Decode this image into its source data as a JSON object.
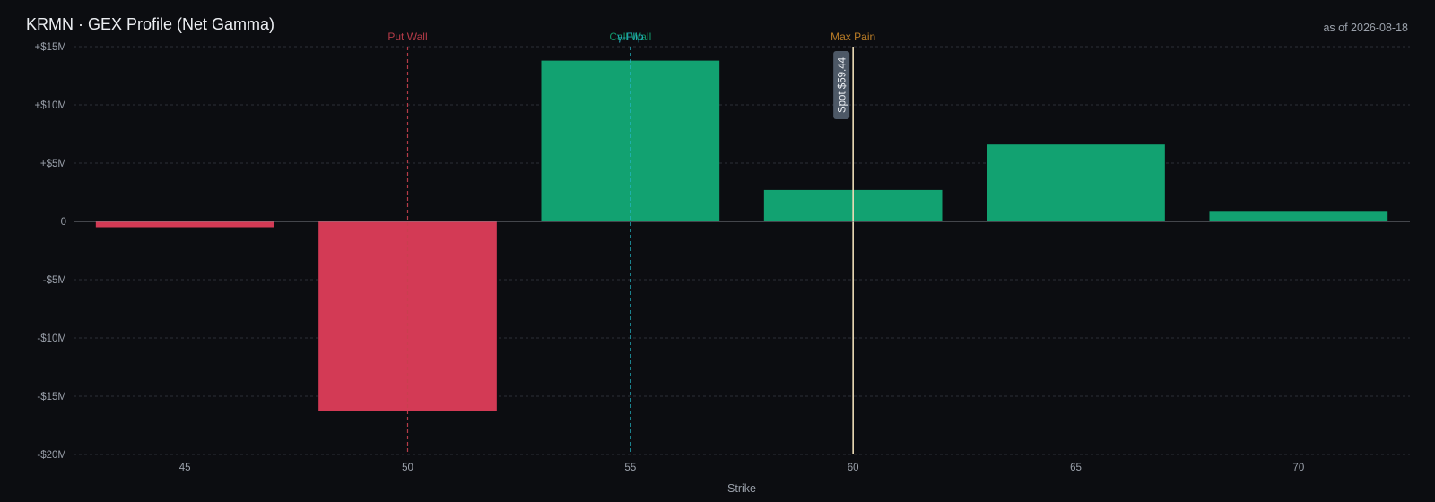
{
  "header": {
    "title": "KRMN · GEX Profile (Net Gamma)",
    "as_of": "as of 2026-08-18"
  },
  "colors": {
    "background": "#0c0d11",
    "positive": "#12a271",
    "negative": "#d33a55",
    "put_wall": "#c8404f",
    "call_wall": "#12a271",
    "gamma_flip": "#25b6c6",
    "max_pain": "#d18b2a",
    "spot_line": "#ecdcb6",
    "spot_label_bg": "#4d5866",
    "grid": "#2b2f36",
    "axis_text": "#9aa0aa"
  },
  "chart_data": {
    "type": "bar",
    "title": "KRMN · GEX Profile (Net Gamma)",
    "xlabel": "Strike",
    "ylabel": "",
    "x": [
      45,
      50,
      55,
      60,
      65,
      70
    ],
    "x_ticks": [
      45,
      50,
      55,
      60,
      65,
      70
    ],
    "x_tick_labels": [
      "45",
      "50",
      "55",
      "60",
      "65",
      "70"
    ],
    "xlim": [
      42.5,
      72.5
    ],
    "values": [
      -0.5,
      -16.3,
      13.8,
      2.7,
      6.6,
      0.9
    ],
    "value_unit": "$M",
    "ylim": [
      -20,
      15
    ],
    "y_ticks": [
      15,
      10,
      5,
      0,
      -5,
      -10,
      -15,
      -20
    ],
    "y_tick_labels": [
      "+$15M",
      "+$10M",
      "+$5M",
      "0",
      "-$5M",
      "-$10M",
      "-$15M",
      "-$20M"
    ],
    "grid": true,
    "markers": [
      {
        "key": "put_wall",
        "label": "Put Wall",
        "x": 50,
        "style": "dashed"
      },
      {
        "key": "call_wall",
        "label": "Call Wall",
        "x": 55,
        "style": "none"
      },
      {
        "key": "gamma_flip",
        "label": "γ-Flip",
        "x": 55,
        "style": "dashed"
      },
      {
        "key": "max_pain",
        "label": "Max Pain",
        "x": 60,
        "style": "none"
      }
    ],
    "spot": {
      "label": "Spot $59.44",
      "x": 60
    }
  }
}
